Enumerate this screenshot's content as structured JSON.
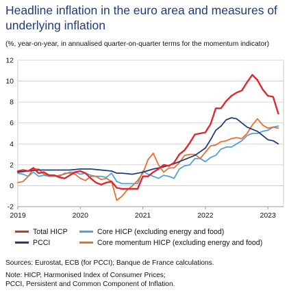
{
  "title": "Headline inflation in the euro area and measures of underlying inflation",
  "subtitle": "(%, year-on-year, in annualised quarter-on-quarter terms for the momentum indicator)",
  "chart_data": {
    "type": "line",
    "x_unit": "year",
    "xlim": [
      2019,
      2023.25
    ],
    "ylim": [
      -2,
      12
    ],
    "yticks": [
      -2,
      0,
      2,
      4,
      6,
      8,
      10,
      12
    ],
    "xticks": [
      2019,
      2020,
      2021,
      2022,
      2023
    ],
    "ytick_labels": [
      "-2",
      "0",
      "2",
      "4",
      "6",
      "8",
      "10",
      "12"
    ],
    "xtick_labels": [
      "2019",
      "2020",
      "2021",
      "2022",
      "2023"
    ],
    "grid": "horizontal",
    "legend_position": "bottom",
    "colors": {
      "total_hicp": "#e2262b",
      "pcci": "#1f3b7a",
      "core_hicp": "#4aa3df",
      "core_momentum": "#ee6c2c"
    },
    "series": [
      {
        "key": "total_hicp",
        "name": "Total HICP",
        "points": [
          [
            2019.0,
            1.4
          ],
          [
            2019.083,
            1.5
          ],
          [
            2019.167,
            1.4
          ],
          [
            2019.25,
            1.7
          ],
          [
            2019.333,
            1.2
          ],
          [
            2019.417,
            1.3
          ],
          [
            2019.5,
            1.0
          ],
          [
            2019.583,
            1.0
          ],
          [
            2019.667,
            0.8
          ],
          [
            2019.75,
            0.7
          ],
          [
            2019.833,
            1.0
          ],
          [
            2019.917,
            1.3
          ],
          [
            2020.0,
            1.4
          ],
          [
            2020.083,
            1.2
          ],
          [
            2020.167,
            0.7
          ],
          [
            2020.25,
            0.3
          ],
          [
            2020.333,
            0.1
          ],
          [
            2020.417,
            0.3
          ],
          [
            2020.5,
            0.4
          ],
          [
            2020.583,
            -0.2
          ],
          [
            2020.667,
            -0.3
          ],
          [
            2020.75,
            -0.3
          ],
          [
            2020.833,
            -0.3
          ],
          [
            2020.917,
            -0.3
          ],
          [
            2021.0,
            0.9
          ],
          [
            2021.083,
            0.9
          ],
          [
            2021.167,
            1.3
          ],
          [
            2021.25,
            1.6
          ],
          [
            2021.333,
            2.0
          ],
          [
            2021.417,
            1.9
          ],
          [
            2021.5,
            2.2
          ],
          [
            2021.583,
            3.0
          ],
          [
            2021.667,
            3.4
          ],
          [
            2021.75,
            4.1
          ],
          [
            2021.833,
            4.9
          ],
          [
            2021.917,
            5.0
          ],
          [
            2022.0,
            5.1
          ],
          [
            2022.083,
            5.9
          ],
          [
            2022.167,
            7.4
          ],
          [
            2022.25,
            7.4
          ],
          [
            2022.333,
            8.1
          ],
          [
            2022.417,
            8.6
          ],
          [
            2022.5,
            8.9
          ],
          [
            2022.583,
            9.1
          ],
          [
            2022.667,
            9.9
          ],
          [
            2022.75,
            10.6
          ],
          [
            2022.833,
            10.1
          ],
          [
            2022.917,
            9.2
          ],
          [
            2023.0,
            8.6
          ],
          [
            2023.083,
            8.5
          ],
          [
            2023.167,
            6.9
          ]
        ]
      },
      {
        "key": "pcci",
        "name": "PCCI",
        "points": [
          [
            2019.0,
            1.3
          ],
          [
            2019.167,
            1.4
          ],
          [
            2019.333,
            1.5
          ],
          [
            2019.5,
            1.5
          ],
          [
            2019.667,
            1.5
          ],
          [
            2019.833,
            1.5
          ],
          [
            2020.0,
            1.6
          ],
          [
            2020.167,
            1.6
          ],
          [
            2020.333,
            1.5
          ],
          [
            2020.5,
            1.4
          ],
          [
            2020.583,
            1.2
          ],
          [
            2020.667,
            1.2
          ],
          [
            2020.833,
            1.1
          ],
          [
            2021.0,
            1.3
          ],
          [
            2021.167,
            1.6
          ],
          [
            2021.333,
            1.8
          ],
          [
            2021.5,
            2.1
          ],
          [
            2021.667,
            2.5
          ],
          [
            2021.833,
            2.9
          ],
          [
            2022.0,
            3.6
          ],
          [
            2022.083,
            4.4
          ],
          [
            2022.167,
            5.3
          ],
          [
            2022.25,
            5.7
          ],
          [
            2022.333,
            6.3
          ],
          [
            2022.417,
            6.5
          ],
          [
            2022.5,
            6.4
          ],
          [
            2022.583,
            6.0
          ],
          [
            2022.667,
            5.6
          ],
          [
            2022.75,
            5.4
          ],
          [
            2022.833,
            5.2
          ],
          [
            2022.917,
            4.8
          ],
          [
            2023.0,
            4.4
          ],
          [
            2023.083,
            4.3
          ],
          [
            2023.167,
            4.0
          ]
        ]
      },
      {
        "key": "core_hicp",
        "name": "Core HICP (excluding energy and food)",
        "points": [
          [
            2019.0,
            1.2
          ],
          [
            2019.083,
            1.1
          ],
          [
            2019.167,
            0.9
          ],
          [
            2019.25,
            1.3
          ],
          [
            2019.333,
            0.9
          ],
          [
            2019.417,
            1.0
          ],
          [
            2019.5,
            0.9
          ],
          [
            2019.583,
            0.9
          ],
          [
            2019.667,
            1.0
          ],
          [
            2019.75,
            1.1
          ],
          [
            2019.833,
            1.3
          ],
          [
            2019.917,
            1.3
          ],
          [
            2020.0,
            1.1
          ],
          [
            2020.083,
            1.2
          ],
          [
            2020.167,
            1.0
          ],
          [
            2020.25,
            0.9
          ],
          [
            2020.333,
            0.9
          ],
          [
            2020.417,
            0.8
          ],
          [
            2020.5,
            1.2
          ],
          [
            2020.583,
            0.4
          ],
          [
            2020.667,
            0.2
          ],
          [
            2020.75,
            0.2
          ],
          [
            2020.833,
            0.2
          ],
          [
            2020.917,
            0.2
          ],
          [
            2021.0,
            1.4
          ],
          [
            2021.083,
            1.1
          ],
          [
            2021.167,
            0.9
          ],
          [
            2021.25,
            0.7
          ],
          [
            2021.333,
            1.0
          ],
          [
            2021.417,
            0.9
          ],
          [
            2021.5,
            0.7
          ],
          [
            2021.583,
            1.6
          ],
          [
            2021.667,
            1.9
          ],
          [
            2021.75,
            2.0
          ],
          [
            2021.833,
            2.6
          ],
          [
            2021.917,
            2.6
          ],
          [
            2022.0,
            2.3
          ],
          [
            2022.083,
            2.7
          ],
          [
            2022.167,
            2.9
          ],
          [
            2022.25,
            3.5
          ],
          [
            2022.333,
            3.7
          ],
          [
            2022.417,
            3.7
          ],
          [
            2022.5,
            4.0
          ],
          [
            2022.583,
            4.3
          ],
          [
            2022.667,
            4.8
          ],
          [
            2022.75,
            5.0
          ],
          [
            2022.833,
            5.0
          ],
          [
            2022.917,
            5.2
          ],
          [
            2023.0,
            5.3
          ],
          [
            2023.083,
            5.6
          ],
          [
            2023.167,
            5.7
          ]
        ]
      },
      {
        "key": "core_momentum",
        "name": "Core momentum HICP (excluding energy and food)",
        "points": [
          [
            2019.0,
            0.3
          ],
          [
            2019.083,
            0.4
          ],
          [
            2019.167,
            0.9
          ],
          [
            2019.25,
            1.6
          ],
          [
            2019.333,
            1.6
          ],
          [
            2019.417,
            1.1
          ],
          [
            2019.5,
            1.0
          ],
          [
            2019.583,
            1.0
          ],
          [
            2019.667,
            0.9
          ],
          [
            2019.75,
            1.2
          ],
          [
            2019.833,
            1.2
          ],
          [
            2019.917,
            1.1
          ],
          [
            2020.0,
            0.7
          ],
          [
            2020.083,
            0.5
          ],
          [
            2020.167,
            0.9
          ],
          [
            2020.25,
            0.9
          ],
          [
            2020.333,
            0.6
          ],
          [
            2020.417,
            0.7
          ],
          [
            2020.5,
            0.4
          ],
          [
            2020.583,
            -1.4
          ],
          [
            2020.667,
            -1.0
          ],
          [
            2020.75,
            -0.4
          ],
          [
            2020.833,
            0.0
          ],
          [
            2020.917,
            0.5
          ],
          [
            2021.0,
            1.2
          ],
          [
            2021.083,
            2.5
          ],
          [
            2021.167,
            3.1
          ],
          [
            2021.25,
            2.0
          ],
          [
            2021.333,
            1.3
          ],
          [
            2021.417,
            1.7
          ],
          [
            2021.5,
            1.7
          ],
          [
            2021.583,
            2.2
          ],
          [
            2021.667,
            2.9
          ],
          [
            2021.75,
            3.0
          ],
          [
            2021.833,
            3.0
          ],
          [
            2021.917,
            2.6
          ],
          [
            2022.0,
            3.2
          ],
          [
            2022.083,
            3.8
          ],
          [
            2022.167,
            3.9
          ],
          [
            2022.25,
            4.2
          ],
          [
            2022.333,
            4.3
          ],
          [
            2022.417,
            4.5
          ],
          [
            2022.5,
            4.6
          ],
          [
            2022.583,
            4.5
          ],
          [
            2022.667,
            5.0
          ],
          [
            2022.75,
            5.8
          ],
          [
            2022.833,
            6.4
          ],
          [
            2022.917,
            5.8
          ],
          [
            2023.0,
            5.5
          ],
          [
            2023.083,
            5.6
          ],
          [
            2023.167,
            5.5
          ]
        ]
      }
    ]
  },
  "legend": {
    "total_hicp": "Total HICP",
    "pcci": "PCCI",
    "core_hicp": "Core HICP (excluding energy and food)",
    "core_momentum": "Core momentum HICP (excluding energy and food)"
  },
  "notes": {
    "sources": "Sources: Eurostat, ECB (for PCCI); Banque de France calculations.",
    "note_line1": "Note: HICP, Harmonised Index of Consumer Prices;",
    "note_line2": "PCCI, Persistent and Common Component of Inflation."
  }
}
